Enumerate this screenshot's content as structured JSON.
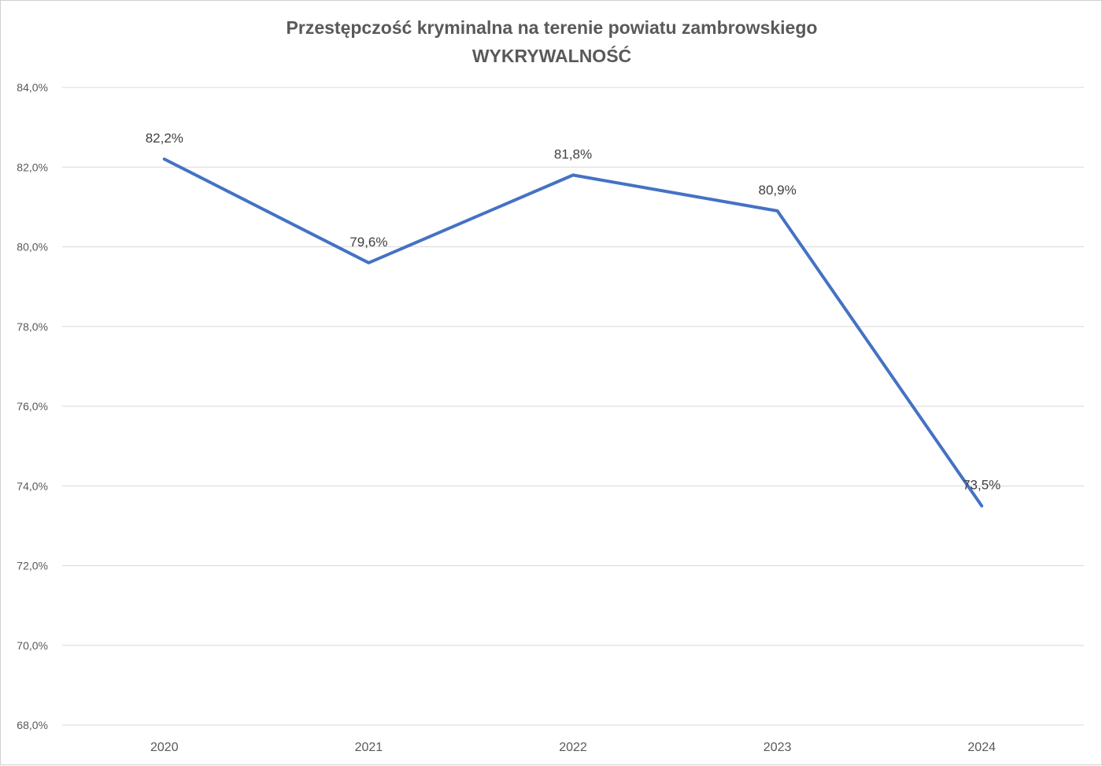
{
  "chart_data": {
    "type": "line",
    "title": "Przestępczość kryminalna na terenie powiatu zambrowskiego",
    "subtitle": "WYKRYWALNOŚĆ",
    "categories": [
      "2020",
      "2021",
      "2022",
      "2023",
      "2024"
    ],
    "series": [
      {
        "values": [
          82.2,
          79.6,
          81.8,
          80.9,
          73.5
        ],
        "labels": [
          "82,2%",
          "79,6%",
          "81,8%",
          "80,9%",
          "73,5%"
        ],
        "color": "#4472c4"
      }
    ],
    "ylim": [
      68,
      84
    ],
    "y_ticks": [
      {
        "value": 68,
        "label": "68,0%"
      },
      {
        "value": 70,
        "label": "70,0%"
      },
      {
        "value": 72,
        "label": "72,0%"
      },
      {
        "value": 74,
        "label": "74,0%"
      },
      {
        "value": 76,
        "label": "76,0%"
      },
      {
        "value": 78,
        "label": "78,0%"
      },
      {
        "value": 80,
        "label": "80,0%"
      },
      {
        "value": 82,
        "label": "82,0%"
      },
      {
        "value": 84,
        "label": "84,0%"
      }
    ],
    "xlabel": "",
    "ylabel": "",
    "grid": true,
    "legend": "none",
    "colors": {
      "line": "#4472c4",
      "grid": "#d9d9d9",
      "axis_text": "#595959",
      "title": "#595959",
      "data_label": "#404040"
    }
  }
}
